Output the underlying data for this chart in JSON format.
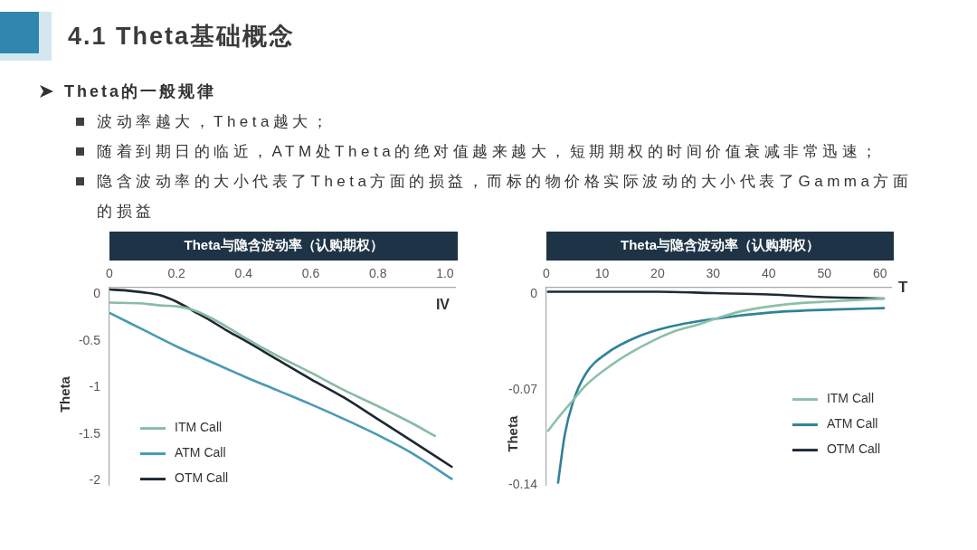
{
  "chart_data": [
    {
      "type": "other",
      "title": "4.1 Theta基础概念",
      "subtitle": "Theta的一般规律",
      "annotations": [
        "波动率越大，Theta越大；",
        "随着到期日的临近，ATM处Theta的绝对值越来越大，短期期权的时间价值衰减非常迅速；",
        "隐含波动率的大小代表了Theta方面的损益，而标的物价格实际波动的大小代表了Gamma方面的损益"
      ]
    },
    {
      "type": "line",
      "title": "Theta与隐含波动率（认购期权）",
      "xlabel": "IV",
      "ylabel": "Theta",
      "xlim": [
        0,
        1.03
      ],
      "xticks": [
        0,
        0.2,
        0.4,
        0.6,
        0.8,
        {
          "value": 1,
          "label": "1.0"
        }
      ],
      "ylim": [
        -2.05,
        0.07
      ],
      "yticks": [
        0,
        -0.5,
        -1,
        -1.5,
        -2
      ],
      "legend": "bottom left",
      "series": [
        {
          "name": "ITM Call",
          "color": "#88bba5",
          "x": [
            0,
            0.1,
            0.15,
            0.2,
            0.25,
            0.3,
            0.35,
            0.4,
            0.5,
            0.6,
            0.7,
            0.8,
            0.9,
            0.97
          ],
          "values": [
            -0.09,
            -0.1,
            -0.12,
            -0.13,
            -0.17,
            -0.25,
            -0.35,
            -0.46,
            -0.66,
            -0.84,
            -1.03,
            -1.2,
            -1.38,
            -1.52
          ]
        },
        {
          "name": "ATM Call",
          "color": "#4a9ab4",
          "x": [
            0,
            0.1,
            0.2,
            0.3,
            0.4,
            0.5,
            0.6,
            0.7,
            0.8,
            0.9,
            1.02
          ],
          "values": [
            -0.2,
            -0.38,
            -0.56,
            -0.72,
            -0.88,
            -1.03,
            -1.18,
            -1.34,
            -1.51,
            -1.7,
            -1.98
          ]
        },
        {
          "name": "OTM Call",
          "color": "#1e2832",
          "x": [
            0,
            0.05,
            0.1,
            0.15,
            0.2,
            0.25,
            0.3,
            0.35,
            0.4,
            0.5,
            0.6,
            0.7,
            0.8,
            0.9,
            1.02
          ],
          "values": [
            0.05,
            0.04,
            0.02,
            -0.01,
            -0.08,
            -0.18,
            -0.28,
            -0.39,
            -0.49,
            -0.7,
            -0.91,
            -1.11,
            -1.34,
            -1.57,
            -1.85
          ]
        }
      ]
    },
    {
      "type": "line",
      "title": "Theta与隐含波动率（认购期权）",
      "xlabel": "T",
      "ylabel": "Theta",
      "xlim": [
        0,
        62
      ],
      "xticks": [
        0,
        10,
        20,
        30,
        40,
        50,
        60
      ],
      "ylim": [
        -0.14,
        0.005
      ],
      "yticks": [
        0,
        -0.07,
        -0.14
      ],
      "legend": "bottom right",
      "series": [
        {
          "name": "ITM Call",
          "color": "#8cc0a8",
          "x": [
            0.3,
            2,
            4.7,
            7,
            10.9,
            15,
            19.1,
            23,
            27.3,
            31,
            35.4,
            43.6,
            51.8,
            60.7
          ],
          "values": [
            -0.1,
            -0.091,
            -0.078,
            -0.067,
            -0.054,
            -0.043,
            -0.034,
            -0.027,
            -0.022,
            -0.017,
            -0.012,
            -0.007,
            -0.005,
            -0.003
          ]
        },
        {
          "name": "ATM Call",
          "color": "#2f8299",
          "x": [
            2.1,
            3.3,
            4.7,
            7.1,
            10.9,
            16.4,
            21.8,
            30,
            40.9,
            51.8,
            60.7
          ],
          "values": [
            -0.138,
            -0.103,
            -0.08,
            -0.058,
            -0.043,
            -0.031,
            -0.024,
            -0.018,
            -0.013,
            -0.011,
            -0.01
          ]
        },
        {
          "name": "OTM Call",
          "color": "#1e2a35",
          "x": [
            0.3,
            10,
            20,
            30,
            40,
            50,
            60.7
          ],
          "values": [
            0.002,
            0.002,
            0.002,
            0.001,
            0,
            -0.002,
            -0.003
          ]
        }
      ]
    }
  ]
}
